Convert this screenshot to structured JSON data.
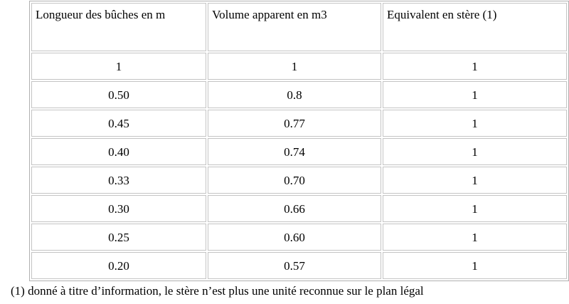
{
  "table": {
    "headers": [
      "Longueur des bûches en m",
      "Volume apparent en m3",
      "Equivalent en stère (1)"
    ],
    "rows": [
      [
        "1",
        "1",
        "1"
      ],
      [
        "0.50",
        "0.8",
        "1"
      ],
      [
        "0.45",
        "0.77",
        "1"
      ],
      [
        "0.40",
        "0.74",
        "1"
      ],
      [
        "0.33",
        "0.70",
        "1"
      ],
      [
        "0.30",
        "0.66",
        "1"
      ],
      [
        "0.25",
        "0.60",
        "1"
      ],
      [
        "0.20",
        "0.57",
        "1"
      ]
    ]
  },
  "footnote": "(1) donné à titre d’information, le stère n’est plus une unité reconnue sur le plan légal"
}
